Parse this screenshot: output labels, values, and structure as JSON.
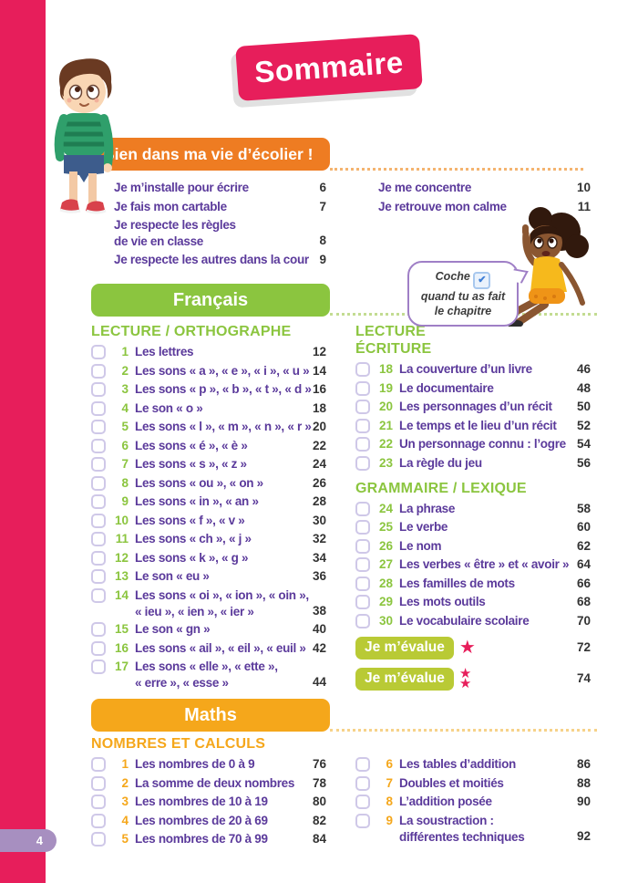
{
  "title": "Sommaire",
  "page_number": "4",
  "bubble": {
    "before_check": "Coche",
    "check_icon": "✔",
    "line2": "quand tu as fait",
    "line3": "le chapitre"
  },
  "colors": {
    "pink": "#e71e5b",
    "orange": "#ee7c22",
    "green": "#8bc53f",
    "yellow": "#f5a71b",
    "badge_green": "#b9ca35",
    "purple_text": "#5b3a9b",
    "tab_lavender": "#a78fc0"
  },
  "sections": {
    "ecolier": {
      "header": "Bien dans ma vie d’écolier !",
      "columns": {
        "left": {
          "items": [
            {
              "label": "Je m’installe pour écrire",
              "page": "6"
            },
            {
              "label": "Je fais mon cartable",
              "page": "7"
            },
            {
              "lines": [
                "Je respecte les règles",
                "de vie en classe"
              ],
              "page": "8"
            },
            {
              "label": "Je respecte les autres dans la cour",
              "page": "9"
            }
          ]
        },
        "right": {
          "items": [
            {
              "label": "Je me concentre",
              "page": "10"
            },
            {
              "label": "Je retrouve mon calme",
              "page": "11"
            }
          ]
        }
      }
    },
    "francais": {
      "header": "Français",
      "columns": {
        "left": {
          "subsections": [
            {
              "title": "LECTURE / ORTHOGRAPHE",
              "items": [
                {
                  "num": "1",
                  "label": "Les lettres",
                  "page": "12"
                },
                {
                  "num": "2",
                  "label": "Les sons « a », « e », « i », « u »",
                  "page": "14"
                },
                {
                  "num": "3",
                  "label": "Les sons « p », « b », « t », « d »",
                  "page": "16"
                },
                {
                  "num": "4",
                  "label": "Le son « o »",
                  "page": "18"
                },
                {
                  "num": "5",
                  "label": "Les sons « l », « m », « n », « r »",
                  "page": "20"
                },
                {
                  "num": "6",
                  "label": "Les sons « é », « è »",
                  "page": "22"
                },
                {
                  "num": "7",
                  "label": "Les sons « s », « z »",
                  "page": "24"
                },
                {
                  "num": "8",
                  "label": "Les sons « ou », « on »",
                  "page": "26"
                },
                {
                  "num": "9",
                  "label": "Les sons « in », « an »",
                  "page": "28"
                },
                {
                  "num": "10",
                  "label": "Les sons « f », « v »",
                  "page": "30"
                },
                {
                  "num": "11",
                  "label": "Les sons « ch », « j »",
                  "page": "32"
                },
                {
                  "num": "12",
                  "label": "Les sons « k », « g »",
                  "page": "34"
                },
                {
                  "num": "13",
                  "label": "Le son « eu »",
                  "page": "36"
                },
                {
                  "num": "14",
                  "lines": [
                    "Les sons « oi », « ion », « oin »,",
                    "« ieu », « ien », « ier »"
                  ],
                  "page": "38"
                },
                {
                  "num": "15",
                  "label": "Le son « gn »",
                  "page": "40"
                },
                {
                  "num": "16",
                  "label": "Les sons « ail », « eil », « euil »",
                  "page": "42"
                },
                {
                  "num": "17",
                  "lines": [
                    "Les sons « elle », « ette »,",
                    "« erre », « esse »"
                  ],
                  "page": "44"
                }
              ]
            }
          ]
        },
        "right": {
          "subsections": [
            {
              "title_lines": [
                "LECTURE",
                "ÉCRITURE"
              ],
              "items": [
                {
                  "num": "18",
                  "label": "La couverture d’un livre",
                  "page": "46"
                },
                {
                  "num": "19",
                  "label": "Le documentaire",
                  "page": "48"
                },
                {
                  "num": "20",
                  "label": "Les personnages d’un récit",
                  "page": "50"
                },
                {
                  "num": "21",
                  "label": "Le temps et le lieu d’un récit",
                  "page": "52"
                },
                {
                  "num": "22",
                  "label": "Un personnage connu : l’ogre",
                  "page": "54"
                },
                {
                  "num": "23",
                  "label": "La règle du jeu",
                  "page": "56"
                }
              ]
            },
            {
              "title": "GRAMMAIRE / LEXIQUE",
              "items": [
                {
                  "num": "24",
                  "label": "La phrase",
                  "page": "58"
                },
                {
                  "num": "25",
                  "label": "Le verbe",
                  "page": "60"
                },
                {
                  "num": "26",
                  "label": "Le nom",
                  "page": "62"
                },
                {
                  "num": "27",
                  "label": "Les verbes « être » et « avoir »",
                  "page": "64"
                },
                {
                  "num": "28",
                  "label": "Les familles de mots",
                  "page": "66"
                },
                {
                  "num": "29",
                  "label": "Les mots outils",
                  "page": "68"
                },
                {
                  "num": "30",
                  "label": "Le vocabulaire scolaire",
                  "page": "70"
                }
              ]
            }
          ],
          "evaluations": [
            {
              "label": "Je m’évalue",
              "stars": 1,
              "page": "72"
            },
            {
              "label": "Je m’évalue",
              "stars": 2,
              "page": "74"
            }
          ]
        }
      }
    },
    "maths": {
      "header": "Maths",
      "columns": {
        "left": {
          "subsections": [
            {
              "title": "NOMBRES ET CALCULS",
              "items": [
                {
                  "num": "1",
                  "label": "Les nombres de 0 à 9",
                  "page": "76"
                },
                {
                  "num": "2",
                  "label": "La somme de deux nombres",
                  "page": "78"
                },
                {
                  "num": "3",
                  "label": "Les nombres de 10 à 19",
                  "page": "80"
                },
                {
                  "num": "4",
                  "label": "Les nombres de 20 à 69",
                  "page": "82"
                },
                {
                  "num": "5",
                  "label": "Les nombres de 70 à 99",
                  "page": "84"
                }
              ]
            }
          ]
        },
        "right": {
          "subsections": [
            {
              "items": [
                {
                  "num": "6",
                  "label": "Les tables d’addition",
                  "page": "86"
                },
                {
                  "num": "7",
                  "label": "Doubles et moitiés",
                  "page": "88"
                },
                {
                  "num": "8",
                  "label": "L’addition posée",
                  "page": "90"
                },
                {
                  "num": "9",
                  "lines": [
                    "La soustraction :",
                    "différentes techniques"
                  ],
                  "page": "92"
                }
              ]
            }
          ]
        }
      }
    }
  }
}
